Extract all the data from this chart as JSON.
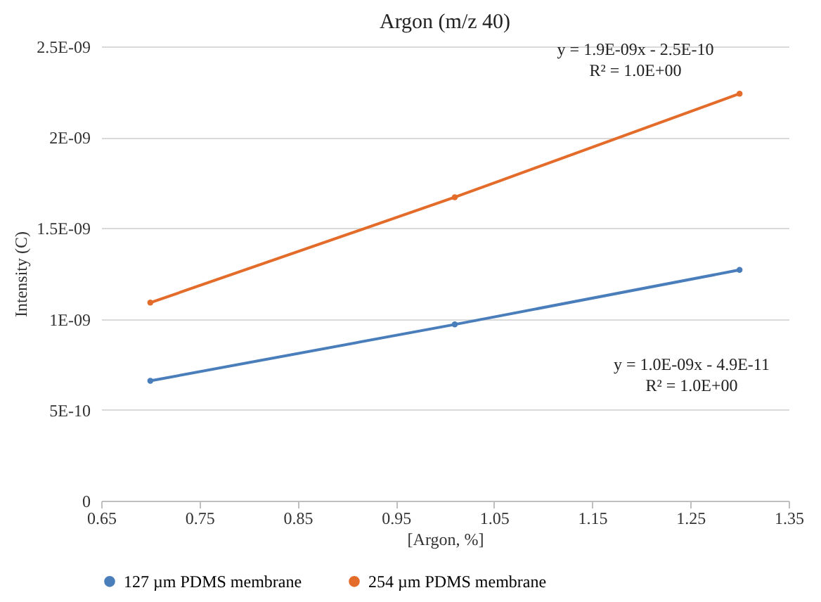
{
  "chart_data": {
    "type": "line",
    "title": "Argon (m/z 40)",
    "xlabel": "[Argon, %]",
    "ylabel": "Intensity (C)",
    "x": [
      0.7,
      1.01,
      1.3
    ],
    "series": [
      {
        "name": "127 µm PDMS membrane",
        "color": "#4a7ebb",
        "values": [
          6.6e-10,
          9.7e-10,
          1.27e-09
        ]
      },
      {
        "name": "254 µm PDMS membrane",
        "color": "#e36c2a",
        "values": [
          1.09e-09,
          1.67e-09,
          2.24e-09
        ]
      }
    ],
    "xlim": [
      0.65,
      1.35
    ],
    "xticks": [
      0.65,
      0.75,
      0.85,
      0.95,
      1.05,
      1.15,
      1.25,
      1.35
    ],
    "ylim": [
      0,
      2.5e-09
    ],
    "yticks": [
      {
        "value": 0,
        "label": "0"
      },
      {
        "value": 5e-10,
        "label": "5E-10"
      },
      {
        "value": 1e-09,
        "label": "1E-09"
      },
      {
        "value": 1.5e-09,
        "label": "1.5E-09"
      },
      {
        "value": 2e-09,
        "label": "2E-09"
      },
      {
        "value": 2.5e-09,
        "label": "2.5E-09"
      }
    ],
    "annotations": [
      "y = 1.9E-09x - 2.5E-10",
      "R² = 1.0E+00",
      "y = 1.0E-09x - 4.9E-11",
      "R² = 1.0E+00"
    ],
    "grid": "y",
    "legend": "bottom",
    "marker": "circle",
    "line_style": "solid"
  }
}
